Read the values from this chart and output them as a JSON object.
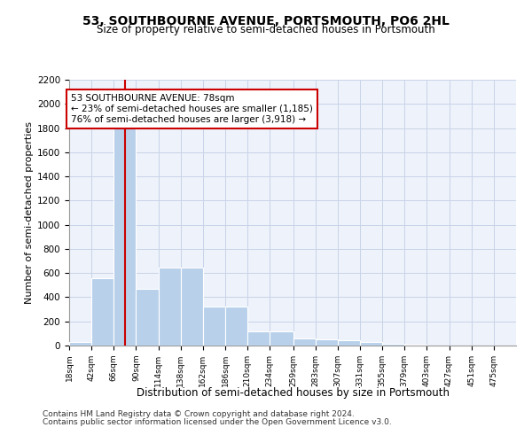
{
  "title_line1": "53, SOUTHBOURNE AVENUE, PORTSMOUTH, PO6 2HL",
  "title_line2": "Size of property relative to semi-detached houses in Portsmouth",
  "xlabel": "Distribution of semi-detached houses by size in Portsmouth",
  "ylabel": "Number of semi-detached properties",
  "footer_line1": "Contains HM Land Registry data © Crown copyright and database right 2024.",
  "footer_line2": "Contains public sector information licensed under the Open Government Licence v3.0.",
  "annotation_title": "53 SOUTHBOURNE AVENUE: 78sqm",
  "annotation_line1": "← 23% of semi-detached houses are smaller (1,185)",
  "annotation_line2": "76% of semi-detached houses are larger (3,918) →",
  "property_size": 78,
  "bar_color": "#b8d0ea",
  "vline_color": "#cc0000",
  "annotation_box_color": "#cc0000",
  "grid_color": "#c8d4e8",
  "background_color": "#eef2fa",
  "bin_edges": [
    18,
    42,
    66,
    90,
    114,
    138,
    162,
    186,
    210,
    234,
    259,
    283,
    307,
    331,
    355,
    379,
    403,
    427,
    451,
    475,
    499
  ],
  "bar_heights": [
    30,
    560,
    1870,
    470,
    645,
    645,
    320,
    320,
    120,
    120,
    60,
    55,
    45,
    27,
    17,
    5,
    2,
    1,
    0,
    0
  ],
  "ylim": [
    0,
    2200
  ],
  "yticks": [
    0,
    200,
    400,
    600,
    800,
    1000,
    1200,
    1400,
    1600,
    1800,
    2000,
    2200
  ]
}
